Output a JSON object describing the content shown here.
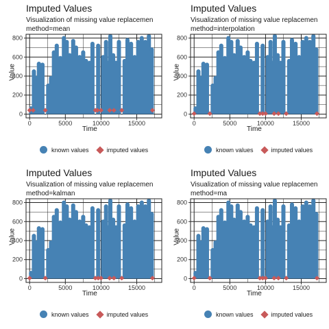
{
  "charts": [
    {
      "title": "Imputed Values",
      "subtitle": "Visualization of missing value replacemen",
      "method": "method=mean"
    },
    {
      "title": "Imputed Values",
      "subtitle": "Visualization of missing value replacemen",
      "method": "method=interpolation"
    },
    {
      "title": "Imputed Values",
      "subtitle": "Visualization of missing value replacemen",
      "method": "method=kalman"
    },
    {
      "title": "Imputed Values",
      "subtitle": "Visualization of missing value replacemen",
      "method": "method=ma"
    }
  ],
  "axis": {
    "xlabel": "Time",
    "ylabel": "Value"
  },
  "legend": {
    "known": "known values",
    "imputed": "imputed values"
  },
  "colors": {
    "known": "#4682b4",
    "imputed": "#c85a5a"
  },
  "chart_data": [
    {
      "type": "scatter",
      "title": "Imputed Values",
      "xlabel": "Time",
      "ylabel": "Value",
      "xlim": [
        -500,
        18500
      ],
      "ylim": [
        -40,
        840
      ],
      "xticks": [
        0,
        5000,
        10000,
        15000
      ],
      "yticks": [
        0,
        200,
        400,
        600,
        800
      ],
      "grid": true,
      "legend_position": "bottom",
      "series": [
        {
          "name": "known values",
          "x": [
            200,
            600,
            900,
            1300,
            1800,
            2600,
            3000,
            3400,
            3800,
            4300,
            4800,
            5200,
            5600,
            6100,
            6500,
            7000,
            7500,
            7900,
            8400,
            8800,
            9600,
            10300,
            10700,
            11000,
            11300,
            11700,
            12100,
            12500,
            13300,
            13700,
            14200,
            14700,
            15200,
            15700,
            16200,
            16700,
            17100
          ],
          "y": [
            60,
            450,
            380,
            530,
            520,
            300,
            380,
            650,
            720,
            590,
            800,
            760,
            620,
            770,
            700,
            600,
            650,
            560,
            540,
            740,
            720,
            600,
            760,
            540,
            820,
            620,
            540,
            760,
            560,
            780,
            740,
            600,
            760,
            800,
            760,
            820,
            680
          ]
        },
        {
          "name": "imputed values",
          "x": [
            0,
            500,
            2200,
            9200,
            9500,
            10000,
            11200,
            11800,
            12900,
            17200
          ],
          "y": [
            40,
            40,
            40,
            40,
            40,
            40,
            40,
            40,
            40,
            40
          ]
        }
      ]
    },
    {
      "type": "scatter",
      "title": "Imputed Values",
      "xlabel": "Time",
      "ylabel": "Value",
      "xlim": [
        -500,
        18500
      ],
      "ylim": [
        -40,
        840
      ],
      "xticks": [
        0,
        5000,
        10000,
        15000
      ],
      "yticks": [
        0,
        200,
        400,
        600,
        800
      ],
      "grid": true,
      "legend_position": "bottom",
      "series": [
        {
          "name": "known values",
          "x": [
            200,
            600,
            900,
            1300,
            1800,
            2600,
            3000,
            3400,
            3800,
            4300,
            4800,
            5200,
            5600,
            6100,
            6500,
            7000,
            7500,
            7900,
            8400,
            8800,
            9600,
            10300,
            10700,
            11000,
            11300,
            11700,
            12100,
            12500,
            13300,
            13700,
            14200,
            14700,
            15200,
            15700,
            16200,
            16700,
            17100
          ],
          "y": [
            60,
            450,
            380,
            530,
            520,
            300,
            380,
            650,
            720,
            590,
            800,
            760,
            620,
            770,
            700,
            600,
            650,
            560,
            540,
            740,
            720,
            600,
            760,
            540,
            820,
            620,
            540,
            760,
            560,
            780,
            740,
            600,
            760,
            800,
            760,
            820,
            680
          ]
        },
        {
          "name": "imputed values",
          "x": [
            0,
            2200,
            9200,
            9600,
            10000,
            11200,
            11800,
            12900,
            17200
          ],
          "y": [
            5,
            5,
            5,
            5,
            5,
            5,
            5,
            5,
            5
          ]
        }
      ]
    },
    {
      "type": "scatter",
      "title": "Imputed Values",
      "xlabel": "Time",
      "ylabel": "Value",
      "xlim": [
        -500,
        18500
      ],
      "ylim": [
        -40,
        840
      ],
      "xticks": [
        0,
        5000,
        10000,
        15000
      ],
      "yticks": [
        0,
        200,
        400,
        600,
        800
      ],
      "grid": true,
      "legend_position": "bottom",
      "series": [
        {
          "name": "known values",
          "x": [
            200,
            600,
            900,
            1300,
            1800,
            2600,
            3000,
            3400,
            3800,
            4300,
            4800,
            5200,
            5600,
            6100,
            6500,
            7000,
            7500,
            7900,
            8400,
            8800,
            9600,
            10300,
            10700,
            11000,
            11300,
            11700,
            12100,
            12500,
            13300,
            13700,
            14200,
            14700,
            15200,
            15700,
            16200,
            16700,
            17100
          ],
          "y": [
            60,
            450,
            380,
            530,
            520,
            300,
            380,
            650,
            720,
            590,
            800,
            760,
            620,
            770,
            700,
            600,
            650,
            560,
            540,
            740,
            720,
            600,
            760,
            540,
            820,
            620,
            540,
            760,
            560,
            780,
            740,
            600,
            760,
            800,
            760,
            820,
            680
          ]
        },
        {
          "name": "imputed values",
          "x": [
            0,
            2200,
            9200,
            9600,
            10000,
            11200,
            11800,
            12900,
            17200
          ],
          "y": [
            5,
            5,
            5,
            5,
            5,
            5,
            5,
            5,
            5
          ]
        }
      ]
    },
    {
      "type": "scatter",
      "title": "Imputed Values",
      "xlabel": "Time",
      "ylabel": "Value",
      "xlim": [
        -500,
        18500
      ],
      "ylim": [
        -40,
        840
      ],
      "xticks": [
        0,
        5000,
        10000,
        15000
      ],
      "yticks": [
        0,
        200,
        400,
        600,
        800
      ],
      "grid": true,
      "legend_position": "bottom",
      "series": [
        {
          "name": "known values",
          "x": [
            200,
            600,
            900,
            1300,
            1800,
            2600,
            3000,
            3400,
            3800,
            4300,
            4800,
            5200,
            5600,
            6100,
            6500,
            7000,
            7500,
            7900,
            8400,
            8800,
            9600,
            10300,
            10700,
            11000,
            11300,
            11700,
            12100,
            12500,
            13300,
            13700,
            14200,
            14700,
            15200,
            15700,
            16200,
            16700,
            17100
          ],
          "y": [
            60,
            450,
            380,
            530,
            520,
            300,
            380,
            650,
            720,
            590,
            800,
            760,
            620,
            770,
            700,
            600,
            650,
            560,
            540,
            740,
            720,
            600,
            760,
            540,
            820,
            620,
            540,
            760,
            560,
            780,
            740,
            600,
            760,
            800,
            760,
            820,
            680
          ]
        },
        {
          "name": "imputed values",
          "x": [
            0,
            2200,
            9200,
            9600,
            10000,
            11200,
            11800,
            12900,
            17200
          ],
          "y": [
            5,
            5,
            5,
            5,
            5,
            5,
            5,
            5,
            5
          ]
        }
      ]
    }
  ]
}
